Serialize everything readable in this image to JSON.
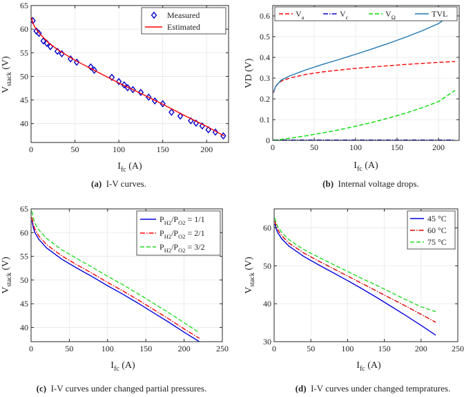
{
  "chart_data": [
    {
      "id": "a",
      "type": "line+scatter",
      "xlim": [
        0,
        225
      ],
      "ylim": [
        36,
        65
      ],
      "xticks": [
        0,
        50,
        100,
        150,
        200
      ],
      "yticks": [
        40,
        45,
        50,
        55,
        60,
        65
      ],
      "xlabel": {
        "main": "I",
        "sub": "fc",
        "unit": " (A)"
      },
      "ylabel": {
        "main": "V",
        "sub": "stack",
        "unit": " (V)"
      },
      "grid": true,
      "legend_position": "top-right",
      "series": [
        {
          "name": "Measured",
          "color": "#0000cc",
          "marker": "diamond",
          "points": [
            [
              2,
              61.8
            ],
            [
              6,
              59.6
            ],
            [
              9,
              59.1
            ],
            [
              14,
              57.5
            ],
            [
              18,
              57.0
            ],
            [
              22,
              56.3
            ],
            [
              30,
              55.3
            ],
            [
              35,
              54.8
            ],
            [
              45,
              53.7
            ],
            [
              52,
              53.0
            ],
            [
              68,
              52.0
            ],
            [
              72,
              51.3
            ],
            [
              92,
              49.8
            ],
            [
              100,
              48.9
            ],
            [
              106,
              48.2
            ],
            [
              110,
              47.6
            ],
            [
              116,
              47.2
            ],
            [
              125,
              46.6
            ],
            [
              134,
              45.6
            ],
            [
              141,
              44.8
            ],
            [
              150,
              44.2
            ],
            [
              160,
              42.4
            ],
            [
              170,
              41.6
            ],
            [
              182,
              40.6
            ],
            [
              188,
              40.1
            ],
            [
              195,
              39.5
            ],
            [
              202,
              38.7
            ],
            [
              210,
              38.2
            ],
            [
              219,
              37.4
            ]
          ]
        },
        {
          "name": "Estimated",
          "color": "#ff0000",
          "marker": "none",
          "points": [
            [
              0.5,
              62.5
            ],
            [
              2,
              61.3
            ],
            [
              5,
              60.2
            ],
            [
              10,
              59.0
            ],
            [
              20,
              57.1
            ],
            [
              30,
              55.7
            ],
            [
              50,
              53.4
            ],
            [
              75,
              51.0
            ],
            [
              100,
              48.6
            ],
            [
              125,
              46.4
            ],
            [
              150,
              44.1
            ],
            [
              175,
              41.7
            ],
            [
              200,
              39.4
            ],
            [
              220,
              37.4
            ]
          ]
        }
      ]
    },
    {
      "id": "b",
      "type": "line",
      "xlim": [
        0,
        225
      ],
      "ylim": [
        0,
        0.65
      ],
      "xticks": [
        0,
        50,
        100,
        150,
        200
      ],
      "yticks": [
        0,
        0.1,
        0.2,
        0.3,
        0.4,
        0.5,
        0.6
      ],
      "xlabel": {
        "main": "I",
        "sub": "fc",
        "unit": " (A)"
      },
      "ylabel": {
        "main": "VD (V)",
        "sub": "",
        "unit": ""
      },
      "grid": true,
      "legend_position": "top (horizontal)",
      "series": [
        {
          "name": "V",
          "sub": "a",
          "color": "#ff0000",
          "dash": "dashed",
          "points": [
            [
              1,
              0.23
            ],
            [
              3,
              0.255
            ],
            [
              5,
              0.268
            ],
            [
              10,
              0.285
            ],
            [
              20,
              0.3
            ],
            [
              40,
              0.318
            ],
            [
              60,
              0.33
            ],
            [
              80,
              0.339
            ],
            [
              100,
              0.347
            ],
            [
              120,
              0.354
            ],
            [
              140,
              0.36
            ],
            [
              160,
              0.366
            ],
            [
              180,
              0.371
            ],
            [
              200,
              0.376
            ],
            [
              220,
              0.38
            ]
          ]
        },
        {
          "name": "V",
          "sub": "c",
          "color": "#0000cc",
          "dash": "dashdot",
          "points": [
            [
              1,
              0.002
            ],
            [
              220,
              0.002
            ]
          ]
        },
        {
          "name": "V",
          "sub": "Ω",
          "color": "#00dd00",
          "dash": "dashed",
          "points": [
            [
              1,
              0.0
            ],
            [
              20,
              0.01
            ],
            [
              40,
              0.022
            ],
            [
              60,
              0.036
            ],
            [
              80,
              0.051
            ],
            [
              100,
              0.068
            ],
            [
              120,
              0.087
            ],
            [
              140,
              0.108
            ],
            [
              160,
              0.131
            ],
            [
              180,
              0.157
            ],
            [
              200,
              0.187
            ],
            [
              220,
              0.241
            ]
          ]
        },
        {
          "name": "TVL",
          "sub": "",
          "color": "#1f77b4",
          "dash": "solid",
          "points": [
            [
              1,
              0.232
            ],
            [
              3,
              0.257
            ],
            [
              5,
              0.268
            ],
            [
              10,
              0.29
            ],
            [
              20,
              0.31
            ],
            [
              40,
              0.34
            ],
            [
              60,
              0.366
            ],
            [
              80,
              0.39
            ],
            [
              100,
              0.415
            ],
            [
              120,
              0.441
            ],
            [
              140,
              0.468
            ],
            [
              160,
              0.497
            ],
            [
              180,
              0.528
            ],
            [
              200,
              0.563
            ],
            [
              220,
              0.621
            ]
          ]
        }
      ]
    },
    {
      "id": "c",
      "type": "line",
      "xlim": [
        0,
        250
      ],
      "ylim": [
        37,
        65
      ],
      "xticks": [
        0,
        50,
        100,
        150,
        200,
        250
      ],
      "yticks": [
        40,
        45,
        50,
        55,
        60,
        65
      ],
      "xlabel": {
        "main": "I",
        "sub": "fc",
        "unit": " (A)"
      },
      "ylabel": {
        "main": "V",
        "sub": "stack",
        "unit": " (V)"
      },
      "grid": true,
      "legend_position": "top-right",
      "series": [
        {
          "label_parts": [
            "P",
            "H2",
            "/P",
            "O2",
            " = 1/1"
          ],
          "color": "#0000dd",
          "dash": "solid",
          "points": [
            [
              1,
              62.6
            ],
            [
              3,
              61.0
            ],
            [
              5,
              60.0
            ],
            [
              10,
              58.6
            ],
            [
              20,
              56.8
            ],
            [
              40,
              54.4
            ],
            [
              60,
              52.5
            ],
            [
              80,
              50.7
            ],
            [
              100,
              48.8
            ],
            [
              120,
              47.0
            ],
            [
              140,
              45.1
            ],
            [
              160,
              43.1
            ],
            [
              180,
              41.1
            ],
            [
              200,
              39.0
            ],
            [
              220,
              37.0
            ]
          ]
        },
        {
          "label_parts": [
            "P",
            "H2",
            "/P",
            "O2",
            " = 2/1"
          ],
          "color": "#ff0000",
          "dash": "dashdot",
          "points": [
            [
              1,
              63.2
            ],
            [
              3,
              61.7
            ],
            [
              5,
              60.7
            ],
            [
              10,
              59.3
            ],
            [
              20,
              57.5
            ],
            [
              40,
              55.1
            ],
            [
              60,
              53.2
            ],
            [
              80,
              51.4
            ],
            [
              100,
              49.5
            ],
            [
              120,
              47.7
            ],
            [
              140,
              45.8
            ],
            [
              160,
              43.8
            ],
            [
              180,
              41.8
            ],
            [
              200,
              39.7
            ],
            [
              220,
              37.7
            ]
          ]
        },
        {
          "label_parts": [
            "P",
            "H2",
            "/P",
            "O2",
            " = 3/2"
          ],
          "color": "#22dd22",
          "dash": "dashed",
          "points": [
            [
              1,
              64.5
            ],
            [
              3,
              63.0
            ],
            [
              5,
              62.0
            ],
            [
              10,
              60.6
            ],
            [
              20,
              58.8
            ],
            [
              40,
              56.4
            ],
            [
              60,
              54.5
            ],
            [
              80,
              52.7
            ],
            [
              100,
              50.8
            ],
            [
              120,
              49.0
            ],
            [
              140,
              47.1
            ],
            [
              160,
              45.1
            ],
            [
              180,
              43.1
            ],
            [
              200,
              41.0
            ],
            [
              220,
              38.9
            ]
          ]
        }
      ]
    },
    {
      "id": "d",
      "type": "line",
      "xlim": [
        0,
        250
      ],
      "ylim": [
        30,
        65
      ],
      "xticks": [
        0,
        50,
        100,
        150,
        200,
        250
      ],
      "yticks": [
        30,
        40,
        50,
        60
      ],
      "xlabel": {
        "main": "I",
        "sub": "fc",
        "unit": " (A)"
      },
      "ylabel": {
        "main": "V",
        "sub": "stack",
        "unit": " (V)"
      },
      "grid": true,
      "legend_position": "top-right",
      "series": [
        {
          "name": "45 °C",
          "color": "#0000dd",
          "dash": "solid",
          "points": [
            [
              1,
              61.0
            ],
            [
              3,
              59.6
            ],
            [
              5,
              58.7
            ],
            [
              10,
              57.2
            ],
            [
              20,
              55.2
            ],
            [
              40,
              52.5
            ],
            [
              60,
              50.3
            ],
            [
              80,
              48.2
            ],
            [
              100,
              46.1
            ],
            [
              120,
              43.9
            ],
            [
              140,
              41.6
            ],
            [
              160,
              39.2
            ],
            [
              180,
              36.8
            ],
            [
              200,
              34.3
            ],
            [
              220,
              31.7
            ]
          ]
        },
        {
          "name": "60 °C",
          "color": "#dd0000",
          "dash": "dashdot",
          "points": [
            [
              1,
              61.8
            ],
            [
              3,
              60.4
            ],
            [
              5,
              59.5
            ],
            [
              10,
              58.0
            ],
            [
              20,
              56.0
            ],
            [
              40,
              53.4
            ],
            [
              60,
              51.3
            ],
            [
              80,
              49.3
            ],
            [
              100,
              47.3
            ],
            [
              120,
              45.3
            ],
            [
              140,
              43.3
            ],
            [
              160,
              41.3
            ],
            [
              180,
              39.3
            ],
            [
              200,
              37.2
            ],
            [
              220,
              35.1
            ]
          ]
        },
        {
          "name": "75 °C",
          "color": "#22dd22",
          "dash": "dashed",
          "points": [
            [
              1,
              62.6
            ],
            [
              3,
              61.2
            ],
            [
              5,
              60.3
            ],
            [
              10,
              58.9
            ],
            [
              20,
              56.9
            ],
            [
              40,
              54.3
            ],
            [
              60,
              52.3
            ],
            [
              80,
              50.4
            ],
            [
              100,
              48.5
            ],
            [
              120,
              46.6
            ],
            [
              140,
              44.8
            ],
            [
              160,
              42.9
            ],
            [
              180,
              41.0
            ],
            [
              200,
              39.2
            ],
            [
              220,
              37.9
            ]
          ]
        }
      ]
    }
  ],
  "captions": {
    "a": {
      "tag": "(a)",
      "text": "I-V curves."
    },
    "b": {
      "tag": "(b)",
      "text": "Internal voltage drops."
    },
    "c": {
      "tag": "(c)",
      "text": "I-V curves under changed partial pressures."
    },
    "d": {
      "tag": "(d)",
      "text": "I-V curves under changed tempratures."
    }
  }
}
